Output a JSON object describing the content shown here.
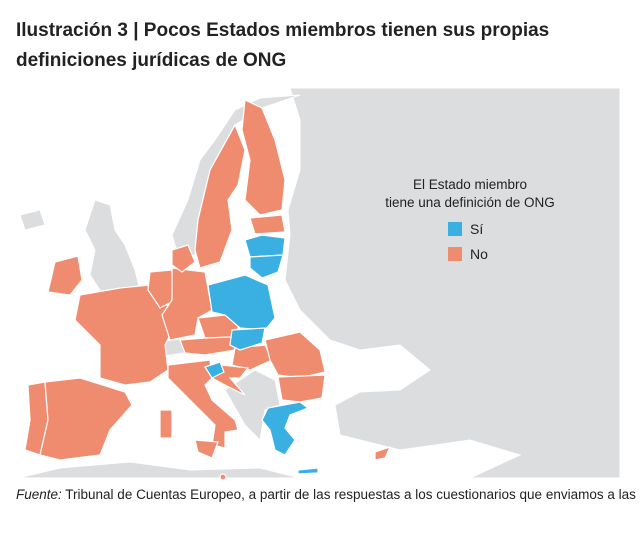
{
  "title": "Ilustración 3 | Pocos Estados miembros tienen sus propias definiciones jurídicas de ONG",
  "legend": {
    "title_line1": "El Estado miembro",
    "title_line2": "tiene una definición de ONG",
    "items": [
      {
        "label": "Sí",
        "color": "#3aafe2"
      },
      {
        "label": "No",
        "color": "#ef8b6e"
      }
    ]
  },
  "source": {
    "prefix": "Fuente:",
    "text": " Tribunal de Cuentas Europeo, a partir de las respuestas a los cuestionarios que enviamos a las"
  }
}
